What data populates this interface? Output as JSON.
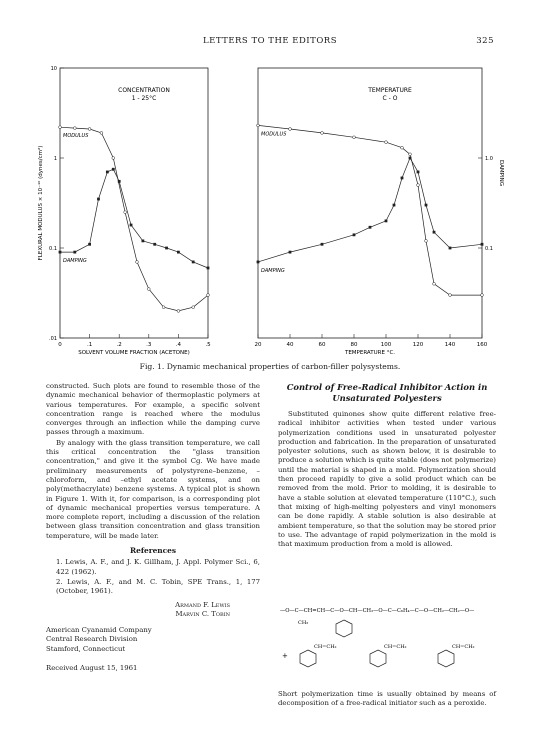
{
  "header": {
    "title": "LETTERS TO THE EDITORS",
    "page_number": "325"
  },
  "chart_data": [
    {
      "type": "line",
      "title": "CONCENTRATION",
      "subtitle": "1 - 25°C",
      "xlabel": "SOLVENT VOLUME FRACTION (ACETONE)",
      "ylabel": "FLEXURAL MODULUS × 10⁻¹⁰ (dynes/cm²)",
      "x_ticks": [
        "0",
        ".1",
        ".2",
        ".3",
        ".4",
        ".5"
      ],
      "y_ticks": [
        "10",
        "1",
        "0.1",
        ".01"
      ],
      "ylim": [
        0.01,
        10
      ],
      "log_y": true,
      "series": [
        {
          "name": "MODULUS",
          "x": [
            0.0,
            0.05,
            0.1,
            0.14,
            0.18,
            0.22,
            0.26,
            0.3,
            0.35,
            0.4,
            0.45,
            0.5
          ],
          "y": [
            2.2,
            2.15,
            2.1,
            1.9,
            1.0,
            0.25,
            0.07,
            0.035,
            0.022,
            0.02,
            0.022,
            0.03
          ]
        },
        {
          "name": "DAMPING",
          "x": [
            0.0,
            0.05,
            0.1,
            0.13,
            0.16,
            0.18,
            0.2,
            0.24,
            0.28,
            0.32,
            0.36,
            0.4,
            0.45,
            0.5
          ],
          "y": [
            0.09,
            0.09,
            0.11,
            0.35,
            0.7,
            0.75,
            0.55,
            0.18,
            0.12,
            0.11,
            0.1,
            0.09,
            0.07,
            0.06
          ]
        }
      ]
    },
    {
      "type": "line",
      "title": "TEMPERATURE",
      "subtitle": "C - O",
      "xlabel": "TEMPERATURE °C.",
      "ylabel": "DAMPING",
      "x_ticks": [
        "20",
        "40",
        "60",
        "80",
        "100",
        "120",
        "140",
        "160"
      ],
      "y_ticks": [
        "1.0",
        "0.1"
      ],
      "ylim": [
        0.01,
        10
      ],
      "log_y": true,
      "series": [
        {
          "name": "MODULUS",
          "x": [
            20,
            40,
            60,
            80,
            100,
            110,
            115,
            120,
            125,
            130,
            140,
            160
          ],
          "y": [
            2.3,
            2.1,
            1.9,
            1.7,
            1.5,
            1.3,
            1.1,
            0.5,
            0.12,
            0.04,
            0.03,
            0.03
          ]
        },
        {
          "name": "DAMPING",
          "x": [
            20,
            40,
            60,
            80,
            90,
            100,
            105,
            110,
            115,
            120,
            125,
            130,
            140,
            160
          ],
          "y": [
            0.07,
            0.09,
            0.11,
            0.14,
            0.17,
            0.2,
            0.3,
            0.6,
            1.0,
            0.7,
            0.3,
            0.15,
            0.1,
            0.11
          ]
        }
      ]
    }
  ],
  "caption": "Fig. 1. Dynamic mechanical properties of carbon-filler polysystems.",
  "left_column": {
    "p1": "constructed. Such plots are found to resemble those of the dynamic mechanical behavior of thermoplastic polymers at various temperatures. For example, a specific solvent concentration range is reached where the modulus converges through an inflection while the damping curve passes through a maximum.",
    "p2": "By analogy with the glass transition temperature, we call this critical concentration the \"glass transition concentration,\" and give it the symbol Cg. We have made preliminary measurements of polystyrene–benzene, –chloroform, and –ethyl acetate systems, and on poly(methacrylate) benzene systems. A typical plot is shown in Figure 1. With it, for comparison, is a corresponding plot of dynamic mechanical properties versus temperature. A more complete report, including a discussion of the relation between glass transition concentration and glass transition temperature, will be made later.",
    "refs_heading": "References",
    "ref1": "1. Lewis, A. F., and J. K. Gillham, J. Appl. Polymer Sci., 6, 422 (1962).",
    "ref2": "2. Lewis, A. F., and M. C. Tobin, SPE Trans., 1, 177 (October, 1961).",
    "sig1": "Armand F. Lewis",
    "sig2": "Marvin C. Tobin",
    "aff1": "American Cyanamid Company",
    "aff2": "Central Research Division",
    "aff3": "Stamford, Connecticut",
    "received": "Received August 15, 1961"
  },
  "right_column": {
    "title_line1": "Control of Free-Radical Inhibitor Action in",
    "title_line2": "Unsaturated Polyesters",
    "p1": "Substituted quinones show quite different relative free-radical inhibitor activities when tested under various polymerization conditions used in unsaturated polyester production and fabrication. In the preparation of unsaturated polyester solutions, such as shown below, it is desirable to produce a solution which is quite stable (does not polymerize) until the material is shaped in a mold. Polymerization should then proceed rapidly to give a solid product which can be removed from the mold. Prior to molding, it is desirable to have a stable solution at elevated temperature (110°C.), such that mixing of high-melting polyesters and vinyl monomers can be done rapidly. A stable solution is also desirable at ambient temperature, so that the solution may be stored prior to use. The advantage of rapid polymerization in the mold is that maximum production from a mold is allowed.",
    "bottom": "Short polymerization time is usually obtained by means of decomposition of a free-radical initiator such as a peroxide."
  },
  "formula": {
    "chain_text": "—O—C—CH=CH—C—O—CH—CH₂—O—C—C₆H₄—C—O—CH₂—CH₂—O—",
    "sub1": "CH₃",
    "sub2": "CH=CH₂",
    "sub3": "CH=CH₂",
    "sub4": "CH=CH₂",
    "plus": "+"
  }
}
